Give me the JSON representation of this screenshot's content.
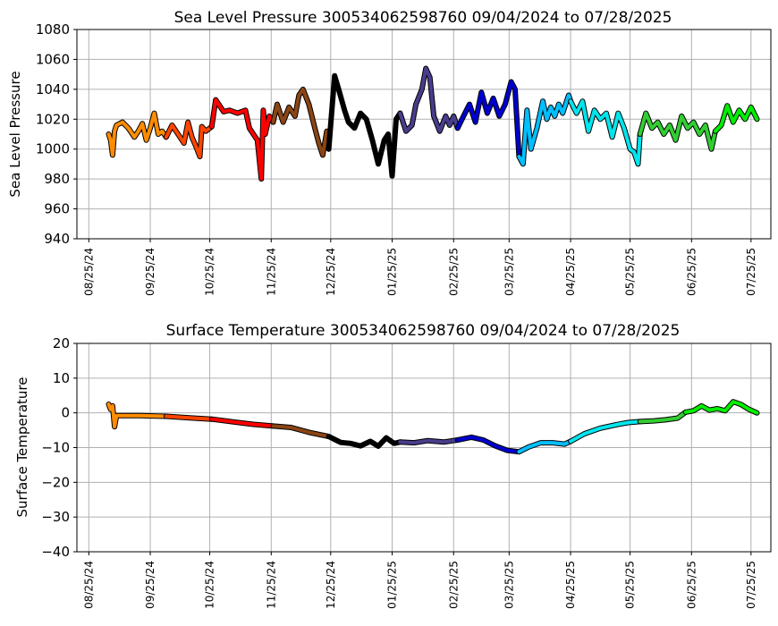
{
  "chart_data": [
    {
      "type": "line",
      "title": "Sea Level Pressure 300534062598760  09/04/2024 to 07/28/2025",
      "xlabel": "",
      "ylabel": "Sea Level Pressure",
      "ylim": [
        940,
        1080
      ],
      "yticks": [
        "940",
        "960",
        "980",
        "1000",
        "1020",
        "1040",
        "1060",
        "1080"
      ],
      "xlim": [
        "2024-08-19",
        "2025-08-04"
      ],
      "xticks": [
        "08/25/24",
        "09/25/24",
        "10/25/24",
        "11/25/24",
        "12/25/24",
        "01/25/25",
        "02/25/25",
        "03/25/25",
        "04/25/25",
        "05/25/25",
        "06/25/25",
        "07/25/25"
      ],
      "grid": true,
      "legend": "none",
      "series": [
        {
          "color": "#ff8c00",
          "x": [
            "2024-09-04",
            "2024-09-05",
            "2024-09-06",
            "2024-09-07",
            "2024-09-08",
            "2024-09-11",
            "2024-09-14",
            "2024-09-17",
            "2024-09-19",
            "2024-09-21",
            "2024-09-23",
            "2024-09-25",
            "2024-09-27",
            "2024-09-29",
            "2024-10-01",
            "2024-10-03"
          ],
          "y": [
            1010,
            1006,
            996,
            1012,
            1016,
            1018,
            1014,
            1008,
            1012,
            1017,
            1006,
            1014,
            1024,
            1010,
            1012,
            1008
          ]
        },
        {
          "color": "#ff4500",
          "x": [
            "2024-10-03",
            "2024-10-06",
            "2024-10-09",
            "2024-10-12",
            "2024-10-14",
            "2024-10-16",
            "2024-10-18",
            "2024-10-20",
            "2024-10-21",
            "2024-10-23",
            "2024-10-26"
          ],
          "y": [
            1008,
            1016,
            1010,
            1004,
            1018,
            1008,
            1002,
            995,
            1015,
            1012,
            1015
          ]
        },
        {
          "color": "#ff0000",
          "x": [
            "2024-10-26",
            "2024-10-28",
            "2024-11-01",
            "2024-11-04",
            "2024-11-08",
            "2024-11-12",
            "2024-11-14",
            "2024-11-16",
            "2024-11-18",
            "2024-11-20",
            "2024-11-21",
            "2024-11-22",
            "2024-11-24",
            "2024-11-26"
          ],
          "y": [
            1015,
            1033,
            1025,
            1026,
            1024,
            1026,
            1014,
            1010,
            1006,
            980,
            1026,
            1010,
            1022,
            1018
          ]
        },
        {
          "color": "#8b4513",
          "x": [
            "2024-11-26",
            "2024-11-28",
            "2024-12-01",
            "2024-12-04",
            "2024-12-07",
            "2024-12-09",
            "2024-12-11",
            "2024-12-14",
            "2024-12-17",
            "2024-12-19",
            "2024-12-21",
            "2024-12-23",
            "2024-12-24"
          ],
          "y": [
            1018,
            1030,
            1018,
            1028,
            1022,
            1036,
            1040,
            1030,
            1014,
            1004,
            996,
            1012,
            1000
          ]
        },
        {
          "color": "#000000",
          "x": [
            "2024-12-24",
            "2024-12-27",
            "2024-12-29",
            "2025-01-01",
            "2025-01-03",
            "2025-01-06",
            "2025-01-09",
            "2025-01-12",
            "2025-01-15",
            "2025-01-18",
            "2025-01-21",
            "2025-01-23",
            "2025-01-25",
            "2025-01-27",
            "2025-01-29"
          ],
          "y": [
            1000,
            1049,
            1040,
            1026,
            1018,
            1014,
            1024,
            1020,
            1006,
            990,
            1006,
            1010,
            982,
            1020,
            1024
          ]
        },
        {
          "color": "#483d8b",
          "x": [
            "2025-01-29",
            "2025-02-01",
            "2025-02-04",
            "2025-02-06",
            "2025-02-09",
            "2025-02-11",
            "2025-02-13",
            "2025-02-15",
            "2025-02-18",
            "2025-02-21",
            "2025-02-23",
            "2025-02-25",
            "2025-02-27"
          ],
          "y": [
            1024,
            1012,
            1016,
            1030,
            1040,
            1054,
            1048,
            1022,
            1012,
            1022,
            1016,
            1022,
            1014
          ]
        },
        {
          "color": "#0000cd",
          "x": [
            "2025-02-27",
            "2025-03-02",
            "2025-03-05",
            "2025-03-08",
            "2025-03-11",
            "2025-03-14",
            "2025-03-17",
            "2025-03-20",
            "2025-03-23",
            "2025-03-26",
            "2025-03-28",
            "2025-03-30"
          ],
          "y": [
            1014,
            1022,
            1030,
            1018,
            1038,
            1024,
            1034,
            1022,
            1030,
            1045,
            1040,
            995
          ]
        },
        {
          "color": "#00bfff",
          "x": [
            "2025-03-30",
            "2025-04-01",
            "2025-04-03",
            "2025-04-05",
            "2025-04-08",
            "2025-04-11",
            "2025-04-13",
            "2025-04-15",
            "2025-04-17",
            "2025-04-19",
            "2025-04-21",
            "2025-04-24",
            "2025-04-25"
          ],
          "y": [
            995,
            990,
            1026,
            1000,
            1014,
            1032,
            1020,
            1028,
            1022,
            1030,
            1024,
            1036,
            1032
          ]
        },
        {
          "color": "#00e5ee",
          "x": [
            "2025-04-25",
            "2025-04-28",
            "2025-05-01",
            "2025-05-04",
            "2025-05-07",
            "2025-05-10",
            "2025-05-13",
            "2025-05-16",
            "2025-05-19",
            "2025-05-22",
            "2025-05-25",
            "2025-05-27",
            "2025-05-29",
            "2025-05-30"
          ],
          "y": [
            1032,
            1024,
            1032,
            1012,
            1026,
            1020,
            1024,
            1008,
            1024,
            1014,
            1000,
            998,
            990,
            1010
          ]
        },
        {
          "color": "#32cd32",
          "x": [
            "2025-05-30",
            "2025-06-02",
            "2025-06-05",
            "2025-06-08",
            "2025-06-11",
            "2025-06-14",
            "2025-06-17",
            "2025-06-20",
            "2025-06-23",
            "2025-06-26",
            "2025-06-29",
            "2025-07-02",
            "2025-07-05",
            "2025-07-07"
          ],
          "y": [
            1010,
            1024,
            1014,
            1018,
            1010,
            1016,
            1006,
            1022,
            1014,
            1018,
            1010,
            1016,
            1000,
            1012
          ]
        },
        {
          "color": "#00ee00",
          "x": [
            "2025-07-07",
            "2025-07-10",
            "2025-07-13",
            "2025-07-16",
            "2025-07-19",
            "2025-07-22",
            "2025-07-25",
            "2025-07-28"
          ],
          "y": [
            1012,
            1016,
            1029,
            1018,
            1026,
            1020,
            1028,
            1020
          ]
        }
      ]
    },
    {
      "type": "line",
      "title": "Surface Temperature 300534062598760  09/04/2024 to 07/28/2025",
      "xlabel": "",
      "ylabel": "Surface Temperature",
      "ylim": [
        -40,
        20
      ],
      "yticks": [
        "−40",
        "−30",
        "−20",
        "−10",
        "0",
        "10",
        "20"
      ],
      "xlim": [
        "2024-08-19",
        "2025-08-04"
      ],
      "xticks": [
        "08/25/24",
        "09/25/24",
        "10/25/24",
        "11/25/24",
        "12/25/24",
        "01/25/25",
        "02/25/25",
        "03/25/25",
        "04/25/25",
        "05/25/25",
        "06/25/25",
        "07/25/25"
      ],
      "grid": true,
      "legend": "none",
      "series": [
        {
          "color": "#ff8c00",
          "x": [
            "2024-09-04",
            "2024-09-05",
            "2024-09-06",
            "2024-09-07",
            "2024-09-08",
            "2024-09-12",
            "2024-09-20",
            "2024-09-28",
            "2024-10-03"
          ],
          "y": [
            2.5,
            1.0,
            2.0,
            -4.0,
            -0.8,
            -0.8,
            -0.8,
            -0.9,
            -1.0
          ]
        },
        {
          "color": "#ff4500",
          "x": [
            "2024-10-03",
            "2024-10-14",
            "2024-10-26"
          ],
          "y": [
            -1.0,
            -1.4,
            -1.8
          ]
        },
        {
          "color": "#ff0000",
          "x": [
            "2024-10-26",
            "2024-11-06",
            "2024-11-16",
            "2024-11-26"
          ],
          "y": [
            -1.8,
            -2.6,
            -3.3,
            -3.8
          ]
        },
        {
          "color": "#8b4513",
          "x": [
            "2024-11-26",
            "2024-12-05",
            "2024-12-14",
            "2024-12-24"
          ],
          "y": [
            -3.8,
            -4.2,
            -5.6,
            -6.8
          ]
        },
        {
          "color": "#000000",
          "x": [
            "2024-12-24",
            "2024-12-30",
            "2025-01-04",
            "2025-01-09",
            "2025-01-14",
            "2025-01-18",
            "2025-01-22",
            "2025-01-26",
            "2025-01-29"
          ],
          "y": [
            -6.8,
            -8.5,
            -8.8,
            -9.5,
            -8.2,
            -9.6,
            -7.2,
            -8.8,
            -8.4
          ]
        },
        {
          "color": "#483d8b",
          "x": [
            "2025-01-29",
            "2025-02-05",
            "2025-02-12",
            "2025-02-20",
            "2025-02-27"
          ],
          "y": [
            -8.4,
            -8.6,
            -8.0,
            -8.4,
            -7.8
          ]
        },
        {
          "color": "#0000cd",
          "x": [
            "2025-02-27",
            "2025-03-06",
            "2025-03-12",
            "2025-03-18",
            "2025-03-24",
            "2025-03-30"
          ],
          "y": [
            -7.8,
            -7.0,
            -7.8,
            -9.5,
            -10.8,
            -11.2
          ]
        },
        {
          "color": "#00bfff",
          "x": [
            "2025-03-30",
            "2025-04-04",
            "2025-04-10",
            "2025-04-16",
            "2025-04-22",
            "2025-04-25"
          ],
          "y": [
            -11.2,
            -9.8,
            -8.6,
            -8.6,
            -9.0,
            -8.2
          ]
        },
        {
          "color": "#00e5ee",
          "x": [
            "2025-04-25",
            "2025-05-02",
            "2025-05-10",
            "2025-05-18",
            "2025-05-24",
            "2025-05-30"
          ],
          "y": [
            -8.2,
            -6.0,
            -4.4,
            -3.4,
            -2.8,
            -2.5
          ]
        },
        {
          "color": "#32cd32",
          "x": [
            "2025-05-30",
            "2025-06-06",
            "2025-06-12",
            "2025-06-18",
            "2025-06-22"
          ],
          "y": [
            -2.5,
            -2.3,
            -2.0,
            -1.5,
            0.2
          ]
        },
        {
          "color": "#00ee00",
          "x": [
            "2025-06-22",
            "2025-06-26",
            "2025-06-30",
            "2025-07-04",
            "2025-07-08",
            "2025-07-12",
            "2025-07-16",
            "2025-07-20",
            "2025-07-24",
            "2025-07-28"
          ],
          "y": [
            0.2,
            0.6,
            2.0,
            0.8,
            1.2,
            0.6,
            3.2,
            2.4,
            1.0,
            0.0
          ]
        }
      ]
    }
  ]
}
